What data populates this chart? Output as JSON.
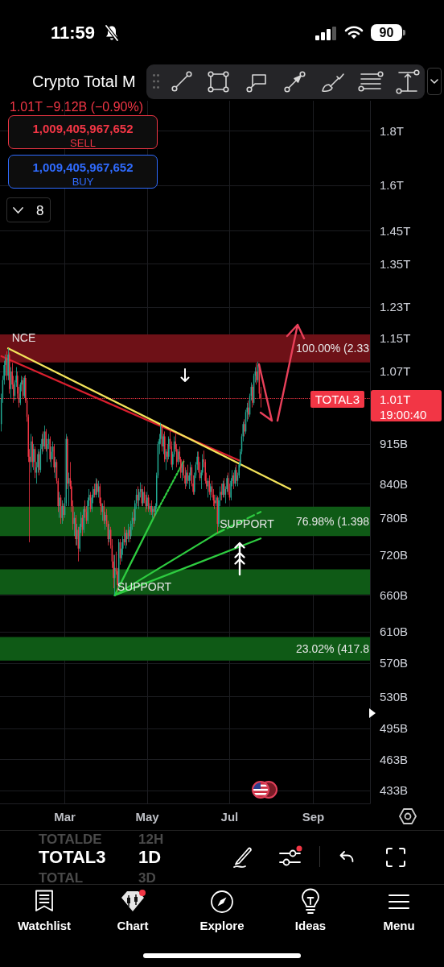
{
  "chart_data": {
    "type": "candlestick",
    "series": [
      {
        "x": [
          "--01-13",
          "--01-14",
          "--01-15",
          "--01-16",
          "--01-17",
          "--01-18",
          "--01-19",
          "--01-20",
          "--01-21",
          "--01-22",
          "--01-23",
          "--01-24",
          "--01-25",
          "--01-26",
          "--01-27",
          "--01-28",
          "--01-29",
          "--01-30",
          "--01-31",
          "--02-01",
          "--02-02",
          "--02-03",
          "--02-04",
          "--02-05",
          "--02-06",
          "--02-07",
          "--02-08",
          "--02-09",
          "--02-10",
          "--02-11",
          "--02-12",
          "--02-13",
          "--02-14",
          "--02-15",
          "--02-16",
          "--02-17",
          "--02-18",
          "--02-19",
          "--02-20",
          "--02-21",
          "--02-22",
          "--02-23",
          "--02-24",
          "--02-25",
          "--02-26",
          "--02-27",
          "--02-28",
          "--03-01",
          "--03-02",
          "--03-03",
          "--03-04",
          "--03-05",
          "--03-06",
          "--03-07",
          "--03-08",
          "--03-09",
          "--03-10",
          "--03-11",
          "--03-12",
          "--03-13",
          "--03-14",
          "--03-15",
          "--03-16",
          "--03-17",
          "--03-18",
          "--03-19",
          "--03-20",
          "--03-21",
          "--03-22",
          "--03-23",
          "--03-24",
          "--03-25",
          "--03-26",
          "--03-27",
          "--03-28",
          "--03-29",
          "--03-30",
          "--03-31",
          "--04-01",
          "--04-02",
          "--04-03",
          "--04-04",
          "--04-05",
          "--04-06",
          "--04-07",
          "--04-08",
          "--04-09",
          "--04-10",
          "--04-11",
          "--04-12",
          "--04-13",
          "--04-14",
          "--04-15",
          "--04-16",
          "--04-17",
          "--04-18",
          "--04-19",
          "--04-20",
          "--04-21",
          "--04-22",
          "--04-23",
          "--04-24",
          "--04-25",
          "--04-26",
          "--04-27",
          "--04-28",
          "--04-29",
          "--04-30",
          "--05-01",
          "--05-02",
          "--05-03",
          "--05-04",
          "--05-05",
          "--05-06",
          "--05-07",
          "--05-08",
          "--05-09",
          "--05-10",
          "--05-11",
          "--05-12",
          "--05-13",
          "--05-14",
          "--05-15",
          "--05-16",
          "--05-17",
          "--05-18",
          "--05-19",
          "--05-20",
          "--05-21",
          "--05-22",
          "--05-23",
          "--05-24",
          "--05-25",
          "--05-26",
          "--05-27",
          "--05-28",
          "--05-29",
          "--05-30",
          "--05-31",
          "--06-01",
          "--06-02",
          "--06-03",
          "--06-04",
          "--06-05",
          "--06-06",
          "--06-07",
          "--06-08",
          "--06-09",
          "--06-10",
          "--06-11",
          "--06-12",
          "--06-13",
          "--06-14",
          "--06-15",
          "--06-16",
          "--06-17",
          "--06-18",
          "--06-19",
          "--06-20",
          "--06-21",
          "--06-22",
          "--06-23",
          "--06-24",
          "--06-25",
          "--06-26",
          "--06-27",
          "--06-28",
          "--06-29",
          "--06-30",
          "--07-01",
          "--07-02",
          "--07-03",
          "--07-04",
          "--07-05",
          "--07-06",
          "--07-07",
          "--07-08",
          "--07-09",
          "--07-10",
          "--07-11",
          "--07-12",
          "--07-13",
          "--07-14",
          "--07-15",
          "--07-16",
          "--07-17",
          "--07-18",
          "--07-19",
          "--07-20",
          "--07-21",
          "--07-22",
          "--07-23",
          "--07-24"
        ],
        "ohlc": [
          [
            955000000000.0,
            1020000000000.0,
            940000000000.0,
            1010000000000.0
          ],
          [
            1010000000000.0,
            1060000000000.0,
            1000000000000.0,
            1050000000000.0
          ],
          [
            1050000000000.0,
            1095000000000.0,
            1040000000000.0,
            1085000000000.0
          ],
          [
            1085000000000.0,
            1110000000000.0,
            1060000000000.0,
            1100000000000.0
          ],
          [
            1100000000000.0,
            1118000000000.0,
            1050000000000.0,
            1060000000000.0
          ],
          [
            1060000000000.0,
            1125000000000.0,
            1050000000000.0,
            1110000000000.0
          ],
          [
            1110000000000.0,
            1115000000000.0,
            1020000000000.0,
            1030000000000.0
          ],
          [
            1030000000000.0,
            1080000000000.0,
            1010000000000.0,
            1070000000000.0
          ],
          [
            1070000000000.0,
            1090000000000.0,
            1030000000000.0,
            1040000000000.0
          ],
          [
            1040000000000.0,
            1060000000000.0,
            1000000000000.0,
            1015000000000.0
          ],
          [
            1015000000000.0,
            1050000000000.0,
            1005000000000.0,
            1045000000000.0
          ],
          [
            1045000000000.0,
            1080000000000.0,
            1035000000000.0,
            1060000000000.0
          ],
          [
            1060000000000.0,
            1070000000000.0,
            1010000000000.0,
            1020000000000.0
          ],
          [
            1020000000000.0,
            1035000000000.0,
            990000000000.0,
            1000000000000.0
          ],
          [
            1000000000000.0,
            1045000000000.0,
            995000000000.0,
            1040000000000.0
          ],
          [
            1040000000000.0,
            1060000000000.0,
            1025000000000.0,
            1050000000000.0
          ],
          [
            1050000000000.0,
            1058000000000.0,
            1010000000000.0,
            1015000000000.0
          ],
          [
            1015000000000.0,
            1060000000000.0,
            1010000000000.0,
            1055000000000.0
          ],
          [
            1055000000000.0,
            1062000000000.0,
            1000000000000.0,
            1005000000000.0
          ],
          [
            1005000000000.0,
            1010000000000.0,
            960000000000.0,
            970000000000.0
          ],
          [
            970000000000.0,
            975000000000.0,
            880000000000.0,
            890000000000.0
          ],
          [
            890000000000.0,
            905000000000.0,
            740000000000.0,
            880000000000.0
          ],
          [
            880000000000.0,
            935000000000.0,
            860000000000.0,
            920000000000.0
          ],
          [
            920000000000.0,
            930000000000.0,
            870000000000.0,
            880000000000.0
          ],
          [
            880000000000.0,
            915000000000.0,
            865000000000.0,
            905000000000.0
          ],
          [
            905000000000.0,
            910000000000.0,
            850000000000.0,
            860000000000.0
          ],
          [
            860000000000.0,
            880000000000.0,
            840000000000.0,
            870000000000.0
          ],
          [
            870000000000.0,
            905000000000.0,
            860000000000.0,
            895000000000.0
          ],
          [
            895000000000.0,
            900000000000.0,
            855000000000.0,
            865000000000.0
          ],
          [
            865000000000.0,
            915000000000.0,
            860000000000.0,
            905000000000.0
          ],
          [
            905000000000.0,
            935000000000.0,
            895000000000.0,
            925000000000.0
          ],
          [
            925000000000.0,
            940000000000.0,
            900000000000.0,
            910000000000.0
          ],
          [
            910000000000.0,
            952000000000.0,
            905000000000.0,
            940000000000.0
          ],
          [
            940000000000.0,
            945000000000.0,
            900000000000.0,
            905000000000.0
          ],
          [
            905000000000.0,
            925000000000.0,
            880000000000.0,
            915000000000.0
          ],
          [
            915000000000.0,
            935000000000.0,
            905000000000.0,
            925000000000.0
          ],
          [
            925000000000.0,
            930000000000.0,
            880000000000.0,
            885000000000.0
          ],
          [
            885000000000.0,
            910000000000.0,
            870000000000.0,
            900000000000.0
          ],
          [
            900000000000.0,
            920000000000.0,
            885000000000.0,
            910000000000.0
          ],
          [
            910000000000.0,
            915000000000.0,
            860000000000.0,
            870000000000.0
          ],
          [
            870000000000.0,
            890000000000.0,
            850000000000.0,
            880000000000.0
          ],
          [
            880000000000.0,
            885000000000.0,
            840000000000.0,
            845000000000.0
          ],
          [
            845000000000.0,
            850000000000.0,
            790000000000.0,
            800000000000.0
          ],
          [
            800000000000.0,
            825000000000.0,
            780000000000.0,
            815000000000.0
          ],
          [
            815000000000.0,
            820000000000.0,
            770000000000.0,
            780000000000.0
          ],
          [
            780000000000.0,
            810000000000.0,
            770000000000.0,
            800000000000.0
          ],
          [
            800000000000.0,
            805000000000.0,
            775000000000.0,
            785000000000.0
          ],
          [
            785000000000.0,
            815000000000.0,
            780000000000.0,
            805000000000.0
          ],
          [
            805000000000.0,
            935000000000.0,
            800000000000.0,
            925000000000.0
          ],
          [
            925000000000.0,
            930000000000.0,
            830000000000.0,
            840000000000.0
          ],
          [
            840000000000.0,
            860000000000.0,
            800000000000.0,
            850000000000.0
          ],
          [
            850000000000.0,
            880000000000.0,
            830000000000.0,
            835000000000.0
          ],
          [
            835000000000.0,
            845000000000.0,
            790000000000.0,
            800000000000.0
          ],
          [
            800000000000.0,
            810000000000.0,
            760000000000.0,
            770000000000.0
          ],
          [
            770000000000.0,
            790000000000.0,
            750000000000.0,
            780000000000.0
          ],
          [
            780000000000.0,
            785000000000.0,
            735000000000.0,
            745000000000.0
          ],
          [
            745000000000.0,
            770000000000.0,
            735000000000.0,
            760000000000.0
          ],
          [
            760000000000.0,
            765000000000.0,
            710000000000.0,
            730000000000.0
          ],
          [
            730000000000.0,
            770000000000.0,
            725000000000.0,
            765000000000.0
          ],
          [
            765000000000.0,
            790000000000.0,
            755000000000.0,
            780000000000.0
          ],
          [
            780000000000.0,
            785000000000.0,
            750000000000.0,
            760000000000.0
          ],
          [
            760000000000.0,
            800000000000.0,
            755000000000.0,
            795000000000.0
          ],
          [
            795000000000.0,
            810000000000.0,
            780000000000.0,
            790000000000.0
          ],
          [
            790000000000.0,
            800000000000.0,
            770000000000.0,
            775000000000.0
          ],
          [
            775000000000.0,
            815000000000.0,
            770000000000.0,
            810000000000.0
          ],
          [
            810000000000.0,
            830000000000.0,
            800000000000.0,
            820000000000.0
          ],
          [
            820000000000.0,
            825000000000.0,
            790000000000.0,
            795000000000.0
          ],
          [
            795000000000.0,
            820000000000.0,
            790000000000.0,
            815000000000.0
          ],
          [
            815000000000.0,
            835000000000.0,
            805000000000.0,
            830000000000.0
          ],
          [
            830000000000.0,
            840000000000.0,
            815000000000.0,
            820000000000.0
          ],
          [
            820000000000.0,
            850000000000.0,
            815000000000.0,
            840000000000.0
          ],
          [
            840000000000.0,
            848000000000.0,
            820000000000.0,
            825000000000.0
          ],
          [
            825000000000.0,
            845000000000.0,
            815000000000.0,
            835000000000.0
          ],
          [
            835000000000.0,
            840000000000.0,
            800000000000.0,
            805000000000.0
          ],
          [
            805000000000.0,
            815000000000.0,
            785000000000.0,
            790000000000.0
          ],
          [
            790000000000.0,
            805000000000.0,
            775000000000.0,
            800000000000.0
          ],
          [
            800000000000.0,
            810000000000.0,
            770000000000.0,
            775000000000.0
          ],
          [
            775000000000.0,
            790000000000.0,
            760000000000.0,
            785000000000.0
          ],
          [
            785000000000.0,
            795000000000.0,
            765000000000.0,
            770000000000.0
          ],
          [
            770000000000.0,
            775000000000.0,
            735000000000.0,
            745000000000.0
          ],
          [
            745000000000.0,
            770000000000.0,
            740000000000.0,
            760000000000.0
          ],
          [
            760000000000.0,
            765000000000.0,
            730000000000.0,
            735000000000.0
          ],
          [
            735000000000.0,
            745000000000.0,
            700000000000.0,
            710000000000.0
          ],
          [
            710000000000.0,
            720000000000.0,
            670000000000.0,
            685000000000.0
          ],
          [
            685000000000.0,
            720000000000.0,
            660000000000.0,
            700000000000.0
          ],
          [
            700000000000.0,
            725000000000.0,
            690000000000.0,
            695000000000.0
          ],
          [
            695000000000.0,
            700000000000.0,
            665000000000.0,
            675000000000.0
          ],
          [
            675000000000.0,
            745000000000.0,
            670000000000.0,
            740000000000.0
          ],
          [
            740000000000.0,
            745000000000.0,
            705000000000.0,
            715000000000.0
          ],
          [
            715000000000.0,
            740000000000.0,
            710000000000.0,
            730000000000.0
          ],
          [
            730000000000.0,
            750000000000.0,
            720000000000.0,
            745000000000.0
          ],
          [
            745000000000.0,
            765000000000.0,
            735000000000.0,
            740000000000.0
          ],
          [
            740000000000.0,
            760000000000.0,
            730000000000.0,
            755000000000.0
          ],
          [
            755000000000.0,
            760000000000.0,
            735000000000.0,
            745000000000.0
          ],
          [
            745000000000.0,
            770000000000.0,
            740000000000.0,
            760000000000.0
          ],
          [
            760000000000.0,
            765000000000.0,
            740000000000.0,
            750000000000.0
          ],
          [
            750000000000.0,
            775000000000.0,
            745000000000.0,
            770000000000.0
          ],
          [
            770000000000.0,
            790000000000.0,
            760000000000.0,
            780000000000.0
          ],
          [
            780000000000.0,
            795000000000.0,
            765000000000.0,
            775000000000.0
          ],
          [
            775000000000.0,
            810000000000.0,
            770000000000.0,
            805000000000.0
          ],
          [
            805000000000.0,
            830000000000.0,
            795000000000.0,
            820000000000.0
          ],
          [
            820000000000.0,
            835000000000.0,
            800000000000.0,
            810000000000.0
          ],
          [
            810000000000.0,
            830000000000.0,
            795000000000.0,
            825000000000.0
          ],
          [
            825000000000.0,
            842000000000.0,
            815000000000.0,
            830000000000.0
          ],
          [
            830000000000.0,
            838000000000.0,
            800000000000.0,
            805000000000.0
          ],
          [
            805000000000.0,
            830000000000.0,
            800000000000.0,
            825000000000.0
          ],
          [
            825000000000.0,
            835000000000.0,
            805000000000.0,
            810000000000.0
          ],
          [
            810000000000.0,
            820000000000.0,
            790000000000.0,
            800000000000.0
          ],
          [
            800000000000.0,
            825000000000.0,
            795000000000.0,
            815000000000.0
          ],
          [
            815000000000.0,
            820000000000.0,
            790000000000.0,
            795000000000.0
          ],
          [
            795000000000.0,
            805000000000.0,
            785000000000.0,
            800000000000.0
          ],
          [
            800000000000.0,
            810000000000.0,
            785000000000.0,
            790000000000.0
          ],
          [
            790000000000.0,
            800000000000.0,
            780000000000.0,
            795000000000.0
          ],
          [
            795000000000.0,
            800000000000.0,
            780000000000.0,
            790000000000.0
          ],
          [
            790000000000.0,
            805000000000.0,
            785000000000.0,
            800000000000.0
          ],
          [
            800000000000.0,
            860000000000.0,
            795000000000.0,
            855000000000.0
          ],
          [
            855000000000.0,
            920000000000.0,
            850000000000.0,
            915000000000.0
          ],
          [
            915000000000.0,
            935000000000.0,
            895000000000.0,
            925000000000.0
          ],
          [
            925000000000.0,
            958000000000.0,
            915000000000.0,
            950000000000.0
          ],
          [
            950000000000.0,
            955000000000.0,
            900000000000.0,
            910000000000.0
          ],
          [
            910000000000.0,
            935000000000.0,
            895000000000.0,
            930000000000.0
          ],
          [
            930000000000.0,
            940000000000.0,
            880000000000.0,
            885000000000.0
          ],
          [
            885000000000.0,
            905000000000.0,
            865000000000.0,
            900000000000.0
          ],
          [
            900000000000.0,
            915000000000.0,
            880000000000.0,
            890000000000.0
          ],
          [
            890000000000.0,
            930000000000.0,
            885000000000.0,
            925000000000.0
          ],
          [
            925000000000.0,
            945000000000.0,
            905000000000.0,
            910000000000.0
          ],
          [
            910000000000.0,
            920000000000.0,
            870000000000.0,
            875000000000.0
          ],
          [
            875000000000.0,
            900000000000.0,
            865000000000.0,
            895000000000.0
          ],
          [
            895000000000.0,
            930000000000.0,
            890000000000.0,
            920000000000.0
          ],
          [
            920000000000.0,
            935000000000.0,
            900000000000.0,
            905000000000.0
          ],
          [
            905000000000.0,
            915000000000.0,
            870000000000.0,
            880000000000.0
          ],
          [
            880000000000.0,
            905000000000.0,
            875000000000.0,
            900000000000.0
          ],
          [
            900000000000.0,
            910000000000.0,
            880000000000.0,
            885000000000.0
          ],
          [
            885000000000.0,
            890000000000.0,
            850000000000.0,
            860000000000.0
          ],
          [
            860000000000.0,
            880000000000.0,
            845000000000.0,
            875000000000.0
          ],
          [
            875000000000.0,
            885000000000.0,
            850000000000.0,
            855000000000.0
          ],
          [
            855000000000.0,
            870000000000.0,
            830000000000.0,
            840000000000.0
          ],
          [
            840000000000.0,
            865000000000.0,
            835000000000.0,
            860000000000.0
          ],
          [
            860000000000.0,
            875000000000.0,
            840000000000.0,
            845000000000.0
          ],
          [
            845000000000.0,
            860000000000.0,
            830000000000.0,
            855000000000.0
          ],
          [
            855000000000.0,
            880000000000.0,
            845000000000.0,
            870000000000.0
          ],
          [
            870000000000.0,
            875000000000.0,
            835000000000.0,
            840000000000.0
          ],
          [
            840000000000.0,
            855000000000.0,
            820000000000.0,
            825000000000.0
          ],
          [
            825000000000.0,
            860000000000.0,
            820000000000.0,
            855000000000.0
          ],
          [
            855000000000.0,
            880000000000.0,
            850000000000.0,
            875000000000.0
          ],
          [
            875000000000.0,
            900000000000.0,
            865000000000.0,
            890000000000.0
          ],
          [
            890000000000.0,
            900000000000.0,
            860000000000.0,
            865000000000.0
          ],
          [
            865000000000.0,
            880000000000.0,
            845000000000.0,
            850000000000.0
          ],
          [
            850000000000.0,
            865000000000.0,
            830000000000.0,
            860000000000.0
          ],
          [
            860000000000.0,
            895000000000.0,
            855000000000.0,
            885000000000.0
          ],
          [
            885000000000.0,
            902000000000.0,
            870000000000.0,
            880000000000.0
          ],
          [
            880000000000.0,
            885000000000.0,
            840000000000.0,
            845000000000.0
          ],
          [
            845000000000.0,
            860000000000.0,
            830000000000.0,
            835000000000.0
          ],
          [
            835000000000.0,
            850000000000.0,
            815000000000.0,
            845000000000.0
          ],
          [
            845000000000.0,
            855000000000.0,
            820000000000.0,
            825000000000.0
          ],
          [
            825000000000.0,
            840000000000.0,
            810000000000.0,
            835000000000.0
          ],
          [
            835000000000.0,
            845000000000.0,
            815000000000.0,
            820000000000.0
          ],
          [
            820000000000.0,
            830000000000.0,
            800000000000.0,
            810000000000.0
          ],
          [
            810000000000.0,
            820000000000.0,
            795000000000.0,
            805000000000.0
          ],
          [
            805000000000.0,
            820000000000.0,
            800000000000.0,
            815000000000.0
          ],
          [
            815000000000.0,
            818000000000.0,
            755000000000.0,
            770000000000.0
          ],
          [
            770000000000.0,
            815000000000.0,
            765000000000.0,
            810000000000.0
          ],
          [
            810000000000.0,
            835000000000.0,
            800000000000.0,
            825000000000.0
          ],
          [
            825000000000.0,
            840000000000.0,
            810000000000.0,
            820000000000.0
          ],
          [
            820000000000.0,
            845000000000.0,
            815000000000.0,
            840000000000.0
          ],
          [
            840000000000.0,
            850000000000.0,
            815000000000.0,
            820000000000.0
          ],
          [
            820000000000.0,
            835000000000.0,
            805000000000.0,
            830000000000.0
          ],
          [
            830000000000.0,
            855000000000.0,
            825000000000.0,
            850000000000.0
          ],
          [
            850000000000.0,
            860000000000.0,
            820000000000.0,
            825000000000.0
          ],
          [
            825000000000.0,
            840000000000.0,
            810000000000.0,
            815000000000.0
          ],
          [
            815000000000.0,
            850000000000.0,
            810000000000.0,
            845000000000.0
          ],
          [
            845000000000.0,
            865000000000.0,
            835000000000.0,
            855000000000.0
          ],
          [
            855000000000.0,
            860000000000.0,
            830000000000.0,
            840000000000.0
          ],
          [
            840000000000.0,
            870000000000.0,
            835000000000.0,
            865000000000.0
          ],
          [
            865000000000.0,
            875000000000.0,
            840000000000.0,
            845000000000.0
          ],
          [
            845000000000.0,
            860000000000.0,
            835000000000.0,
            855000000000.0
          ],
          [
            855000000000.0,
            880000000000.0,
            850000000000.0,
            875000000000.0
          ],
          [
            875000000000.0,
            905000000000.0,
            870000000000.0,
            900000000000.0
          ],
          [
            900000000000.0,
            935000000000.0,
            895000000000.0,
            930000000000.0
          ],
          [
            930000000000.0,
            960000000000.0,
            920000000000.0,
            955000000000.0
          ],
          [
            955000000000.0,
            965000000000.0,
            930000000000.0,
            940000000000.0
          ],
          [
            940000000000.0,
            985000000000.0,
            935000000000.0,
            980000000000.0
          ],
          [
            980000000000.0,
            1000000000000.0,
            960000000000.0,
            990000000000.0
          ],
          [
            990000000000.0,
            1005000000000.0,
            965000000000.0,
            975000000000.0
          ],
          [
            975000000000.0,
            1020000000000.0,
            970000000000.0,
            1015000000000.0
          ],
          [
            1015000000000.0,
            1045000000000.0,
            1005000000000.0,
            1035000000000.0
          ],
          [
            1035000000000.0,
            1040000000000.0,
            990000000000.0,
            1000000000000.0
          ],
          [
            1000000000000.0,
            1065000000000.0,
            995000000000.0,
            1060000000000.0
          ],
          [
            1060000000000.0,
            1080000000000.0,
            1045000000000.0,
            1070000000000.0
          ],
          [
            1070000000000.0,
            1090000000000.0,
            1040000000000.0,
            1050000000000.0
          ],
          [
            1050000000000.0,
            1093000000000.0,
            1045000000000.0,
            1085000000000.0
          ],
          [
            1085000000000.0,
            1088000000000.0,
            1010000000000.0,
            1020000000000.0
          ],
          [
            1020000000000.0,
            1035000000000.0,
            990000000000.0,
            1009405967652
          ]
        ],
        "colors": [
          "#22ab94",
          "#22ab94",
          "#22ab94",
          "#22ab94",
          "#f23645",
          "#22ab94",
          "#f23645",
          "#22ab94",
          "#f23645",
          "#f23645",
          "#22ab94",
          "#22ab94",
          "#f23645",
          "#f23645",
          "#22ab94",
          "#22ab94",
          "#f23645",
          "#22ab94",
          "#f23645",
          "#f23645",
          "#f23645",
          "#f23645",
          "#22ab94",
          "#f23645",
          "#22ab94",
          "#f23645",
          "#22ab94",
          "#22ab94",
          "#f23645",
          "#22ab94",
          "#22ab94",
          "#f23645",
          "#22ab94",
          "#f23645",
          "#22ab94",
          "#22ab94",
          "#f23645",
          "#22ab94",
          "#22ab94",
          "#f23645",
          "#22ab94",
          "#f23645",
          "#f23645",
          "#22ab94",
          "#f23645",
          "#22ab94",
          "#f23645",
          "#22ab94",
          "#22ab94",
          "#f23645",
          "#22ab94",
          "#f23645",
          "#f23645",
          "#f23645",
          "#22ab94",
          "#f23645",
          "#22ab94",
          "#f23645",
          "#22ab94",
          "#22ab94",
          "#f23645",
          "#22ab94",
          "#f23645",
          "#f23645",
          "#22ab94",
          "#22ab94",
          "#f23645",
          "#22ab94",
          "#22ab94",
          "#f23645",
          "#22ab94",
          "#f23645",
          "#22ab94",
          "#f23645",
          "#f23645",
          "#22ab94",
          "#f23645",
          "#22ab94",
          "#f23645",
          "#f23645",
          "#22ab94",
          "#f23645",
          "#f23645",
          "#f23645",
          "#22ab94",
          "#f23645",
          "#f23645",
          "#22ab94",
          "#f23645",
          "#22ab94",
          "#22ab94",
          "#f23645",
          "#22ab94",
          "#f23645",
          "#22ab94",
          "#f23645",
          "#22ab94",
          "#22ab94",
          "#f23645",
          "#22ab94",
          "#22ab94",
          "#f23645",
          "#22ab94",
          "#22ab94",
          "#f23645",
          "#22ab94",
          "#f23645",
          "#f23645",
          "#22ab94",
          "#f23645",
          "#22ab94",
          "#f23645",
          "#22ab94",
          "#f23645",
          "#22ab94",
          "#22ab94",
          "#22ab94",
          "#22ab94",
          "#22ab94",
          "#f23645",
          "#22ab94",
          "#f23645",
          "#22ab94",
          "#f23645",
          "#22ab94",
          "#f23645",
          "#f23645",
          "#22ab94",
          "#22ab94",
          "#f23645",
          "#f23645",
          "#22ab94",
          "#f23645",
          "#f23645",
          "#22ab94",
          "#f23645",
          "#f23645",
          "#22ab94",
          "#f23645",
          "#22ab94",
          "#22ab94",
          "#f23645",
          "#f23645",
          "#22ab94",
          "#22ab94",
          "#22ab94",
          "#f23645",
          "#f23645",
          "#22ab94",
          "#22ab94",
          "#f23645",
          "#f23645",
          "#f23645",
          "#22ab94",
          "#f23645",
          "#22ab94",
          "#f23645",
          "#f23645",
          "#f23645",
          "#22ab94",
          "#f23645",
          "#22ab94",
          "#22ab94",
          "#f23645",
          "#22ab94",
          "#f23645",
          "#22ab94",
          "#22ab94",
          "#f23645",
          "#f23645",
          "#22ab94",
          "#22ab94",
          "#f23645",
          "#22ab94",
          "#f23645",
          "#22ab94",
          "#22ab94",
          "#22ab94",
          "#22ab94",
          "#22ab94",
          "#f23645",
          "#22ab94",
          "#22ab94",
          "#f23645",
          "#22ab94",
          "#22ab94",
          "#f23645",
          "#22ab94",
          "#22ab94",
          "#f23645",
          "#22ab94",
          "#f23645",
          "#f23645"
        ]
      },
      {
        "type": "line",
        "color": "#d91f2e",
        "x": [
          "--01-13",
          "--07-09"
        ],
        "values": [
          1106000000000.0,
          882000000000.0
        ]
      },
      {
        "type": "line",
        "color": "#f3e35a",
        "x": [
          "--01-18",
          "--08-15"
        ],
        "values": [
          1125000000000.0,
          830000000000.0
        ]
      },
      {
        "type": "line",
        "color": "#2ecc40",
        "x": [
          "--04-07",
          "--05-07"
        ],
        "values": [
          660000000000.0,
          786000000000.0
        ]
      },
      {
        "type": "line",
        "color": "#2ecc40",
        "x": [
          "--05-07",
          "--05-28"
        ],
        "values": [
          786000000000.0,
          881000000000.0
        ],
        "line_style": "dotted"
      },
      {
        "type": "line",
        "color": "#2ecc40",
        "x": [
          "--04-07",
          "--06-22"
        ],
        "values": [
          660000000000.0,
          755000000000.0
        ]
      },
      {
        "type": "line",
        "color": "#2ecc40",
        "x": [
          "--06-22",
          "--07-24"
        ],
        "values": [
          755000000000.0,
          790000000000.0
        ],
        "line_style": "dashed"
      },
      {
        "type": "line",
        "color": "#2ecc40",
        "x": [
          "--04-07",
          "--07-24"
        ],
        "values": [
          660000000000.0,
          746000000000.0
        ]
      }
    ],
    "xlim": [
      "--01-12",
      "--10-13"
    ],
    "xticks": [
      {
        "value": "--03-01",
        "label": "Mar"
      },
      {
        "value": "--05-01",
        "label": "May"
      },
      {
        "value": "--07-01",
        "label": "Jul"
      },
      {
        "value": "--09-01",
        "label": "Sep"
      }
    ],
    "ylim": [
      421000000000.0,
      1920000000000.0
    ],
    "yticks": [
      {
        "value": 433000000000.0,
        "label": "433B"
      },
      {
        "value": 463000000000.0,
        "label": "463B"
      },
      {
        "value": 495000000000.0,
        "label": "495B"
      },
      {
        "value": 530000000000.0,
        "label": "530B"
      },
      {
        "value": 570000000000.0,
        "label": "570B"
      },
      {
        "value": 610000000000.0,
        "label": "610B"
      },
      {
        "value": 660000000000.0,
        "label": "660B"
      },
      {
        "value": 720000000000.0,
        "label": "720B"
      },
      {
        "value": 780000000000.0,
        "label": "780B"
      },
      {
        "value": 840000000000.0,
        "label": "840B"
      },
      {
        "value": 915000000000.0,
        "label": "915B"
      },
      {
        "value": 1070000000000.0,
        "label": "1.07T"
      },
      {
        "value": 1150000000000.0,
        "label": "1.15T"
      },
      {
        "value": 1230000000000.0,
        "label": "1.23T"
      },
      {
        "value": 1350000000000.0,
        "label": "1.35T"
      },
      {
        "value": 1450000000000.0,
        "label": "1.45T"
      },
      {
        "value": 1600000000000.0,
        "label": "1.6T"
      },
      {
        "value": 1800000000000.0,
        "label": "1.8T"
      }
    ],
    "log": true,
    "grid": true,
    "marker": "none",
    "bands": [
      {
        "axis": "y",
        "from": 1091000000000.0,
        "to": 1159000000000.0,
        "label": "100.00% (2.33",
        "color": "#6e1117"
      },
      {
        "axis": "y",
        "from": 750000000000.0,
        "to": 799000000000.0,
        "label": "76.98% (1.398",
        "color": "#0f5a16"
      },
      {
        "axis": "y",
        "from": 661000000000.0,
        "to": 698000000000.0,
        "color": "#0f5a16"
      },
      {
        "axis": "y",
        "from": 573000000000.0,
        "to": 603000000000.0,
        "label": "23.02% (417.8",
        "color": "#0f5a16"
      }
    ],
    "ref_lines": [
      {
        "axis": "y",
        "value": 1009405967652,
        "label": "TOTAL3",
        "color": "#f23645",
        "line_style": "dotted"
      }
    ],
    "annotations": [
      "11:59",
      "90",
      "Crypto Total M",
      "1.01T −9.12B (−0.90%)",
      "1,009,405,967,652",
      "SELL",
      "1,009,405,967,652",
      "BUY",
      "8",
      "1.01T",
      "19:00:40",
      "TOTALDE",
      "12H",
      "TOTAL3",
      "1D",
      "TOTAL",
      "3D",
      "Watchlist",
      "Chart",
      "Explore",
      "Ideas",
      "Menu",
      {
        "text": "NCE",
        "x": "--01-19",
        "y": 1129000000000.0
      },
      {
        "text": "SUPPORT",
        "x": "--04-07",
        "y": 660000000000.0
      },
      {
        "text": "SUPPORT",
        "x": "--06-22",
        "y": 755000000000.0
      }
    ]
  }
}
